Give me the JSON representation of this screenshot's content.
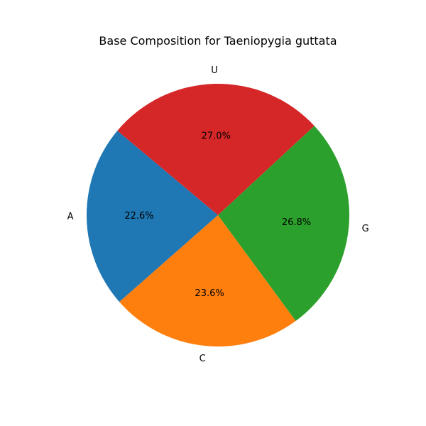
{
  "chart_data": {
    "type": "pie",
    "title": "Base Composition for Taeniopygia guttata",
    "categories": [
      "A",
      "C",
      "G",
      "U"
    ],
    "values": [
      22.6,
      23.6,
      26.8,
      27.0
    ],
    "percent_labels": [
      "22.6%",
      "23.6%",
      "26.8%",
      "27.0%"
    ],
    "colors": [
      "#1f77b4",
      "#ff7f0e",
      "#2ca02c",
      "#d62728"
    ],
    "start_angle_deg": 140,
    "direction": "counterclockwise",
    "legend": "none"
  }
}
